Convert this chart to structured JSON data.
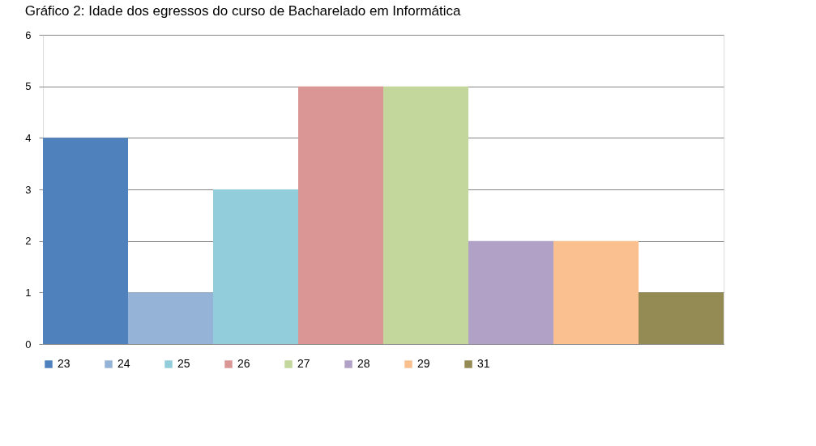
{
  "chart_data": {
    "type": "bar",
    "title": "Gráfico 2: Idade dos egressos do curso de Bacharelado em Informática",
    "categories": [
      null
    ],
    "series": [
      {
        "name": "23",
        "color": "#4f81bd",
        "values": [
          4
        ]
      },
      {
        "name": "24",
        "color": "#95b3d7",
        "values": [
          1
        ]
      },
      {
        "name": "25",
        "color": "#92cddc",
        "values": [
          3
        ]
      },
      {
        "name": "26",
        "color": "#d99694",
        "values": [
          5
        ]
      },
      {
        "name": "27",
        "color": "#c3d69b",
        "values": [
          5
        ]
      },
      {
        "name": "28",
        "color": "#b2a1c7",
        "values": [
          2
        ]
      },
      {
        "name": "29",
        "color": "#fac08f",
        "values": [
          2
        ]
      },
      {
        "name": "31",
        "color": "#948a54",
        "values": [
          1
        ]
      }
    ],
    "ylim": [
      0,
      6
    ],
    "yticks": [
      0,
      1,
      2,
      3,
      4,
      5,
      6
    ],
    "grid": "y",
    "legend": "bottom",
    "tick_labels": "y"
  }
}
